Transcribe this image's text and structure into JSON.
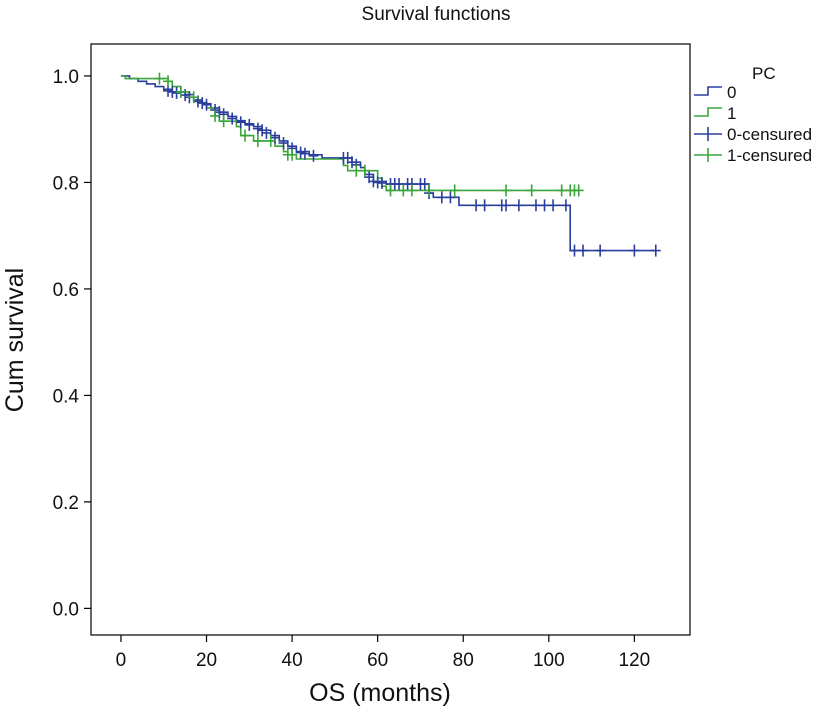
{
  "chart_data": {
    "type": "line",
    "title": "Survival functions",
    "xlabel": "OS (months)",
    "ylabel": "Cum survival",
    "xlim": [
      -7,
      133
    ],
    "ylim": [
      -0.05,
      1.06
    ],
    "xticks": [
      0,
      20,
      40,
      60,
      80,
      100,
      120
    ],
    "yticks": [
      0.0,
      0.2,
      0.4,
      0.6,
      0.8,
      1.0
    ],
    "xtick_labels": [
      "0",
      "20",
      "40",
      "60",
      "80",
      "100",
      "120"
    ],
    "ytick_labels": [
      "0.0",
      "0.2",
      "0.4",
      "0.6",
      "0.8",
      "1.0"
    ],
    "grid": false,
    "legend_title": "PC",
    "legend_position": "right",
    "series": [
      {
        "name": "0",
        "color": "#2a3f9d",
        "step_points": [
          [
            0,
            1.0
          ],
          [
            2,
            0.995
          ],
          [
            4,
            0.99
          ],
          [
            6,
            0.985
          ],
          [
            8,
            0.98
          ],
          [
            10,
            0.975
          ],
          [
            12,
            0.97
          ],
          [
            15,
            0.965
          ],
          [
            17,
            0.955
          ],
          [
            19,
            0.948
          ],
          [
            21,
            0.94
          ],
          [
            23,
            0.932
          ],
          [
            25,
            0.924
          ],
          [
            27,
            0.916
          ],
          [
            29,
            0.91
          ],
          [
            31,
            0.905
          ],
          [
            33,
            0.898
          ],
          [
            35,
            0.888
          ],
          [
            37,
            0.878
          ],
          [
            39,
            0.868
          ],
          [
            41,
            0.858
          ],
          [
            44,
            0.852
          ],
          [
            47,
            0.846
          ],
          [
            54,
            0.838
          ],
          [
            56,
            0.828
          ],
          [
            57,
            0.815
          ],
          [
            59,
            0.802
          ],
          [
            62,
            0.797
          ],
          [
            72,
            0.78
          ],
          [
            73,
            0.772
          ],
          [
            79,
            0.757
          ],
          [
            105,
            0.757
          ],
          [
            105,
            0.672
          ],
          [
            125,
            0.672
          ]
        ],
        "censored": [
          [
            11,
            0.972
          ],
          [
            12,
            0.97
          ],
          [
            13,
            0.968
          ],
          [
            15,
            0.964
          ],
          [
            16,
            0.96
          ],
          [
            18,
            0.952
          ],
          [
            19,
            0.949
          ],
          [
            20,
            0.946
          ],
          [
            22,
            0.936
          ],
          [
            23,
            0.932
          ],
          [
            24,
            0.928
          ],
          [
            26,
            0.92
          ],
          [
            28,
            0.913
          ],
          [
            30,
            0.908
          ],
          [
            32,
            0.901
          ],
          [
            33,
            0.898
          ],
          [
            34,
            0.893
          ],
          [
            36,
            0.884
          ],
          [
            38,
            0.874
          ],
          [
            40,
            0.864
          ],
          [
            42,
            0.856
          ],
          [
            43,
            0.854
          ],
          [
            45,
            0.85
          ],
          [
            52,
            0.846
          ],
          [
            53,
            0.846
          ],
          [
            54,
            0.838
          ],
          [
            55,
            0.833
          ],
          [
            58,
            0.81
          ],
          [
            59,
            0.802
          ],
          [
            60,
            0.8
          ],
          [
            61,
            0.799
          ],
          [
            63,
            0.797
          ],
          [
            64,
            0.797
          ],
          [
            65,
            0.797
          ],
          [
            67,
            0.797
          ],
          [
            68,
            0.797
          ],
          [
            70,
            0.797
          ],
          [
            71,
            0.797
          ],
          [
            72,
            0.78
          ],
          [
            75,
            0.772
          ],
          [
            77,
            0.772
          ],
          [
            83,
            0.757
          ],
          [
            85,
            0.757
          ],
          [
            89,
            0.757
          ],
          [
            90,
            0.757
          ],
          [
            93,
            0.757
          ],
          [
            97,
            0.757
          ],
          [
            99,
            0.757
          ],
          [
            101,
            0.757
          ],
          [
            104,
            0.757
          ],
          [
            106,
            0.672
          ],
          [
            108,
            0.672
          ],
          [
            112,
            0.672
          ],
          [
            120,
            0.672
          ],
          [
            125,
            0.672
          ]
        ]
      },
      {
        "name": "1",
        "color": "#3aa63a",
        "step_points": [
          [
            0,
            1.0
          ],
          [
            1,
            0.995
          ],
          [
            11,
            0.99
          ],
          [
            12,
            0.98
          ],
          [
            14,
            0.97
          ],
          [
            16,
            0.96
          ],
          [
            18,
            0.95
          ],
          [
            20,
            0.94
          ],
          [
            22,
            0.925
          ],
          [
            23,
            0.915
          ],
          [
            27,
            0.905
          ],
          [
            28,
            0.888
          ],
          [
            31,
            0.878
          ],
          [
            36,
            0.868
          ],
          [
            38,
            0.858
          ],
          [
            39,
            0.852
          ],
          [
            41,
            0.844
          ],
          [
            52,
            0.832
          ],
          [
            53,
            0.822
          ],
          [
            60,
            0.808
          ],
          [
            61,
            0.793
          ],
          [
            62,
            0.785
          ],
          [
            107,
            0.785
          ]
        ],
        "censored": [
          [
            9,
            0.995
          ],
          [
            11,
            0.99
          ],
          [
            14,
            0.97
          ],
          [
            17,
            0.96
          ],
          [
            22,
            0.925
          ],
          [
            24,
            0.915
          ],
          [
            29,
            0.888
          ],
          [
            32,
            0.878
          ],
          [
            35,
            0.878
          ],
          [
            39,
            0.852
          ],
          [
            40,
            0.852
          ],
          [
            55,
            0.822
          ],
          [
            57,
            0.822
          ],
          [
            63,
            0.785
          ],
          [
            66,
            0.785
          ],
          [
            68,
            0.785
          ],
          [
            72,
            0.785
          ],
          [
            78,
            0.785
          ],
          [
            90,
            0.785
          ],
          [
            96,
            0.785
          ],
          [
            103,
            0.785
          ],
          [
            105,
            0.785
          ],
          [
            106,
            0.785
          ],
          [
            107,
            0.785
          ]
        ]
      }
    ],
    "legend_entries": [
      {
        "label": "0",
        "kind": "line",
        "color": "#2a3f9d"
      },
      {
        "label": "1",
        "kind": "line",
        "color": "#3aa63a"
      },
      {
        "label": "0-censured",
        "kind": "censor",
        "color": "#2a3f9d"
      },
      {
        "label": "1-censured",
        "kind": "censor",
        "color": "#3aa63a"
      }
    ]
  }
}
